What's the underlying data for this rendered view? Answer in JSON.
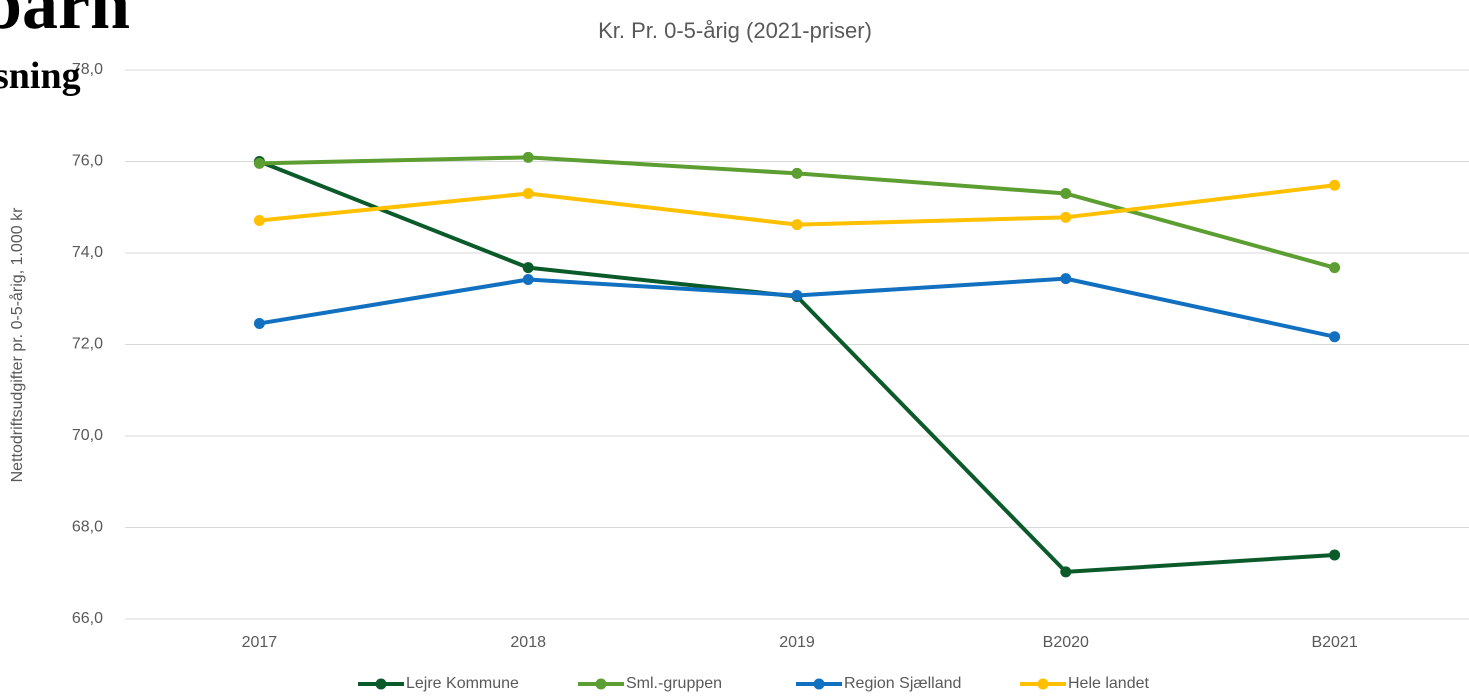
{
  "background_text": [
    "barn",
    "sning"
  ],
  "chart_data": {
    "type": "line",
    "title": "Kr. Pr. 0-5-årig (2021-priser)",
    "y_label": "Nettodriftsudgifter pr. 0-5-årig, 1.000 kr",
    "categories": [
      "2017",
      "2018",
      "2019",
      "B2020",
      "B2021"
    ],
    "series": [
      {
        "name": "Lejre Kommune",
        "color": "#0b5a2a",
        "values": [
          76.0,
          73.68,
          73.05,
          67.03,
          67.4
        ]
      },
      {
        "name": "Sml.-gruppen",
        "color": "#5c9e31",
        "values": [
          75.96,
          76.09,
          75.74,
          75.3,
          73.68
        ]
      },
      {
        "name": "Region Sjælland",
        "color": "#1170c0",
        "values": [
          72.46,
          73.42,
          73.07,
          73.44,
          72.17
        ]
      },
      {
        "name": "Hele landet",
        "color": "#ffc000",
        "values": [
          74.71,
          75.3,
          74.62,
          74.78,
          75.48
        ]
      }
    ],
    "ylim": [
      66,
      78
    ],
    "yticks": [
      {
        "value": 66,
        "label": "66,0"
      },
      {
        "value": 68,
        "label": "68,0"
      },
      {
        "value": 70,
        "label": "70,0"
      },
      {
        "value": 72,
        "label": "72,0"
      },
      {
        "value": 74,
        "label": "74,0"
      },
      {
        "value": 76,
        "label": "76,0"
      },
      {
        "value": 78,
        "label": "78,0"
      }
    ],
    "grid": true,
    "legend": "bottom"
  }
}
